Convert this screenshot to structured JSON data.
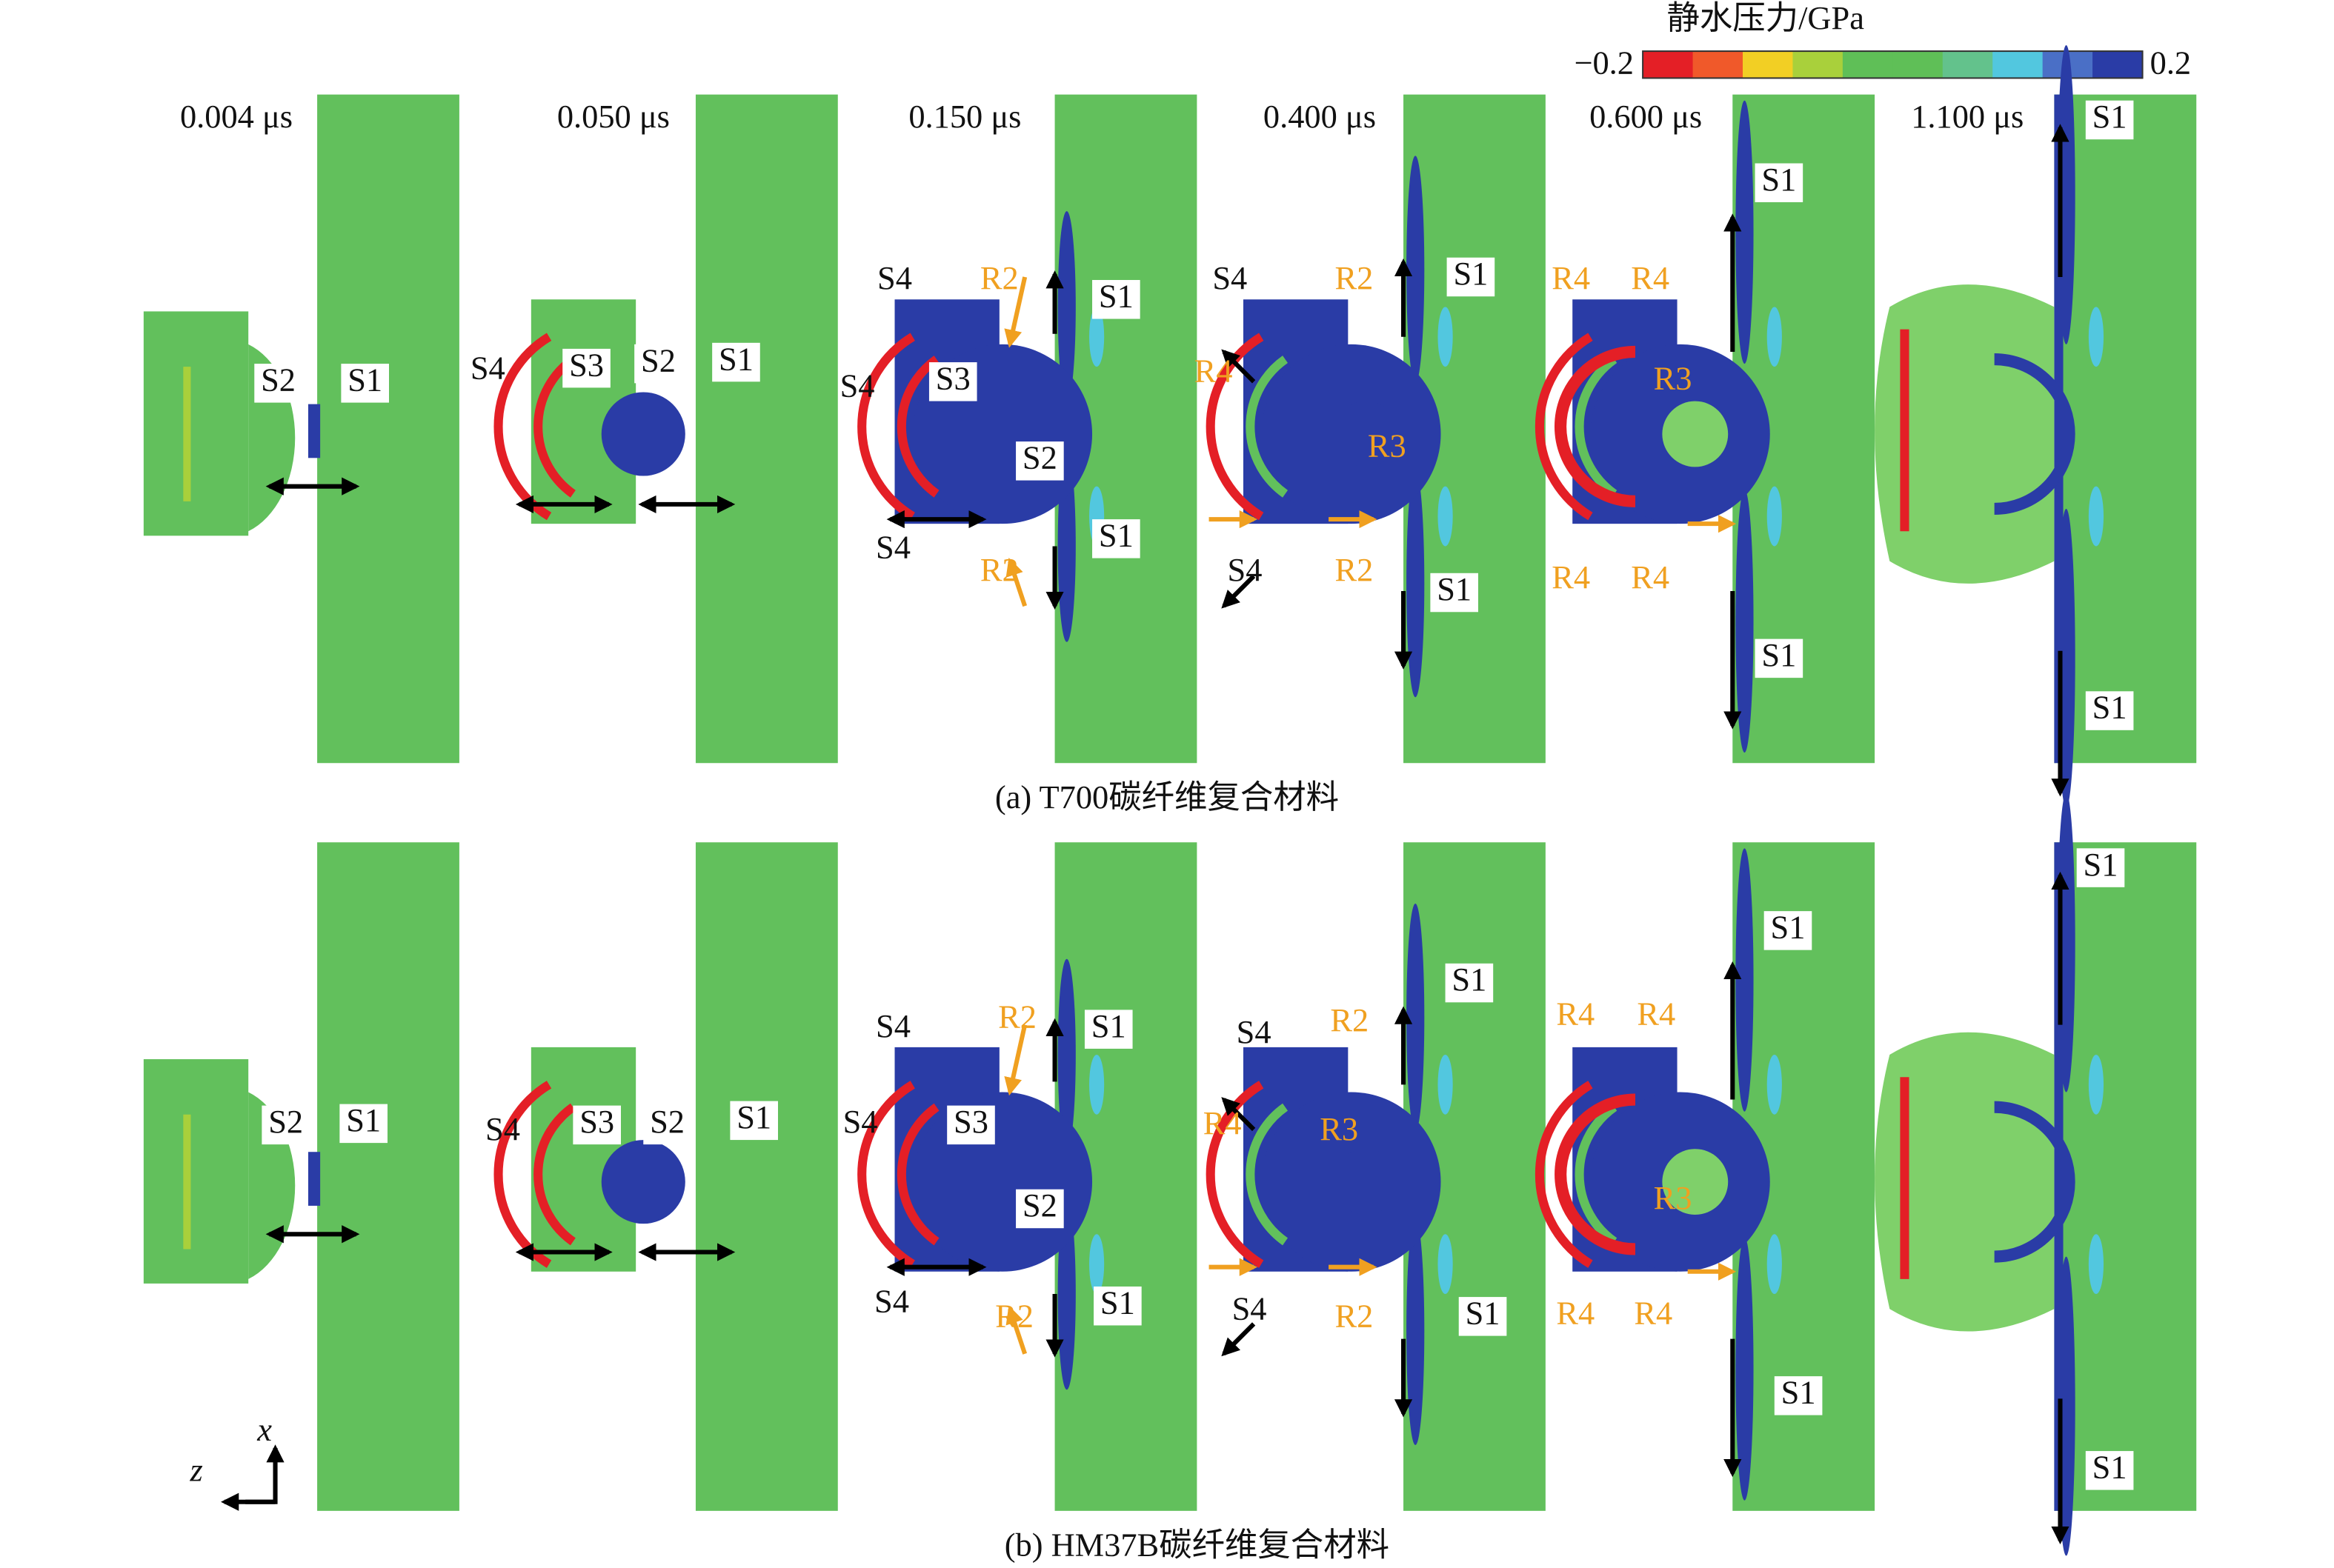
{
  "colorbar": {
    "title": "静水压力/GPa",
    "min_label": "−0.2",
    "max_label": "0.2",
    "colors": [
      "#e41f26",
      "#f0592a",
      "#f2cf24",
      "#a9d03b",
      "#5fbf57",
      "#5fbf57",
      "#63c28c",
      "#52c7df",
      "#4a6fc6",
      "#2a3ca6"
    ]
  },
  "panels": [
    {
      "caption": "(a) T700碳纤维复合材料",
      "frames": [
        {
          "time": "0.004 μs",
          "labels": [
            "S2",
            "S1"
          ]
        },
        {
          "time": "0.050 μs",
          "labels": [
            "S4",
            "S3",
            "S2",
            "S1"
          ]
        },
        {
          "time": "0.150 μs",
          "labels": [
            "S4",
            "R2",
            "S1",
            "S4",
            "S3",
            "S2",
            "S4",
            "R2",
            "S1"
          ]
        },
        {
          "time": "0.400 μs",
          "labels": [
            "S4",
            "R2",
            "S1",
            "R4",
            "R3",
            "S4",
            "R2",
            "S1"
          ]
        },
        {
          "time": "0.600 μs",
          "labels": [
            "R4",
            "R4",
            "S1",
            "R3",
            "R4",
            "R4",
            "S1"
          ]
        },
        {
          "time": "1.100 μs",
          "labels": [
            "S1",
            "S1"
          ]
        }
      ]
    },
    {
      "caption": "(b) HM37B碳纤维复合材料",
      "frames": [
        {
          "labels": [
            "S2",
            "S1"
          ]
        },
        {
          "labels": [
            "S4",
            "S3",
            "S2",
            "S1"
          ]
        },
        {
          "labels": [
            "S4",
            "R2",
            "S1",
            "S4",
            "S3",
            "S2",
            "S4",
            "R2",
            "S1"
          ]
        },
        {
          "labels": [
            "S4",
            "R2",
            "S1",
            "R4",
            "R3",
            "S4",
            "R2",
            "S1"
          ]
        },
        {
          "labels": [
            "R4",
            "R4",
            "S1",
            "R3",
            "R4",
            "R4",
            "S1"
          ]
        },
        {
          "labels": [
            "S1",
            "S1"
          ]
        }
      ]
    }
  ],
  "axes": {
    "x": "x",
    "z": "z"
  }
}
